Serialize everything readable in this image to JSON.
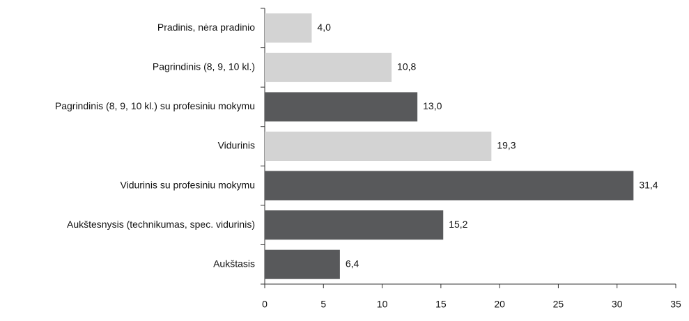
{
  "chart_data": {
    "type": "hbar",
    "categories": [
      "Pradinis, nėra pradinio",
      "Pagrindinis (8, 9, 10 kl.)",
      "Pagrindinis (8, 9, 10 kl.) su profesiniu mokymu",
      "Vidurinis",
      "Vidurinis su profesiniu mokymu",
      "Aukštesnysis (technikumas, spec. vidurinis)",
      "Aukštasis"
    ],
    "values": [
      4.0,
      10.8,
      13.0,
      19.3,
      31.4,
      15.2,
      6.4
    ],
    "value_labels": [
      "4,0",
      "10,8",
      "13,0",
      "19,3",
      "31,4",
      "15,2",
      "6,4"
    ],
    "colors": [
      "#d3d3d3",
      "#d3d3d3",
      "#58595b",
      "#d3d3d3",
      "#58595b",
      "#58595b",
      "#58595b"
    ],
    "xlim": [
      0,
      35
    ],
    "xticks": [
      0,
      5,
      10,
      15,
      20,
      25,
      30,
      35
    ]
  }
}
